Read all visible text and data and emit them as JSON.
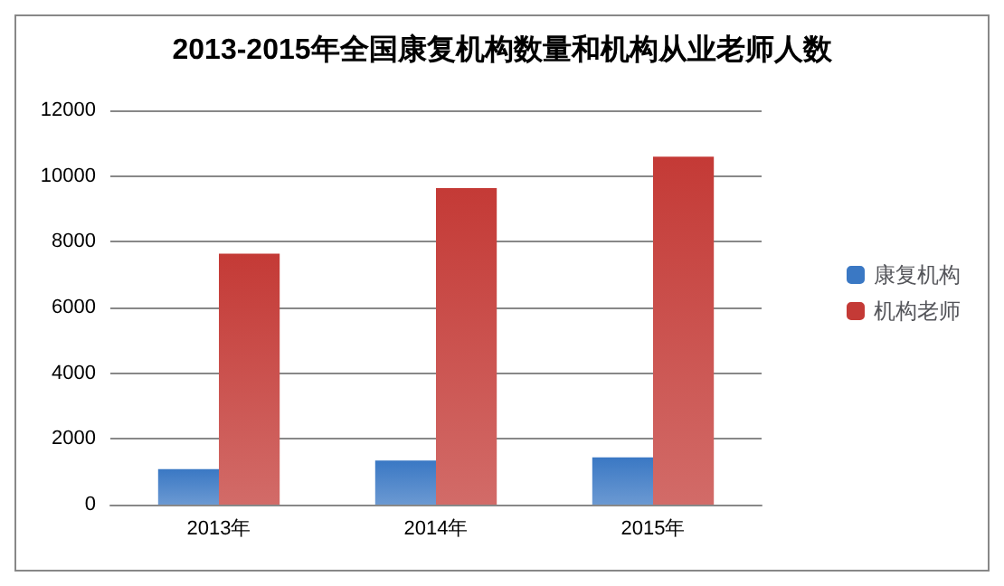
{
  "chart_data": {
    "type": "bar",
    "title": "2013-2015年全国康复机构数量和机构从业老师人数",
    "categories": [
      "2013年",
      "2014年",
      "2015年"
    ],
    "series": [
      {
        "name": "康复机构",
        "color": "#3a78c4",
        "values": [
          1080,
          1340,
          1440
        ]
      },
      {
        "name": "机构老师",
        "color": "#c43a36",
        "values": [
          7640,
          9630,
          10590
        ]
      }
    ],
    "ylim": [
      0,
      12000
    ],
    "yticks": [
      0,
      2000,
      4000,
      6000,
      8000,
      10000,
      12000
    ],
    "grid": "y",
    "legend": "right"
  }
}
